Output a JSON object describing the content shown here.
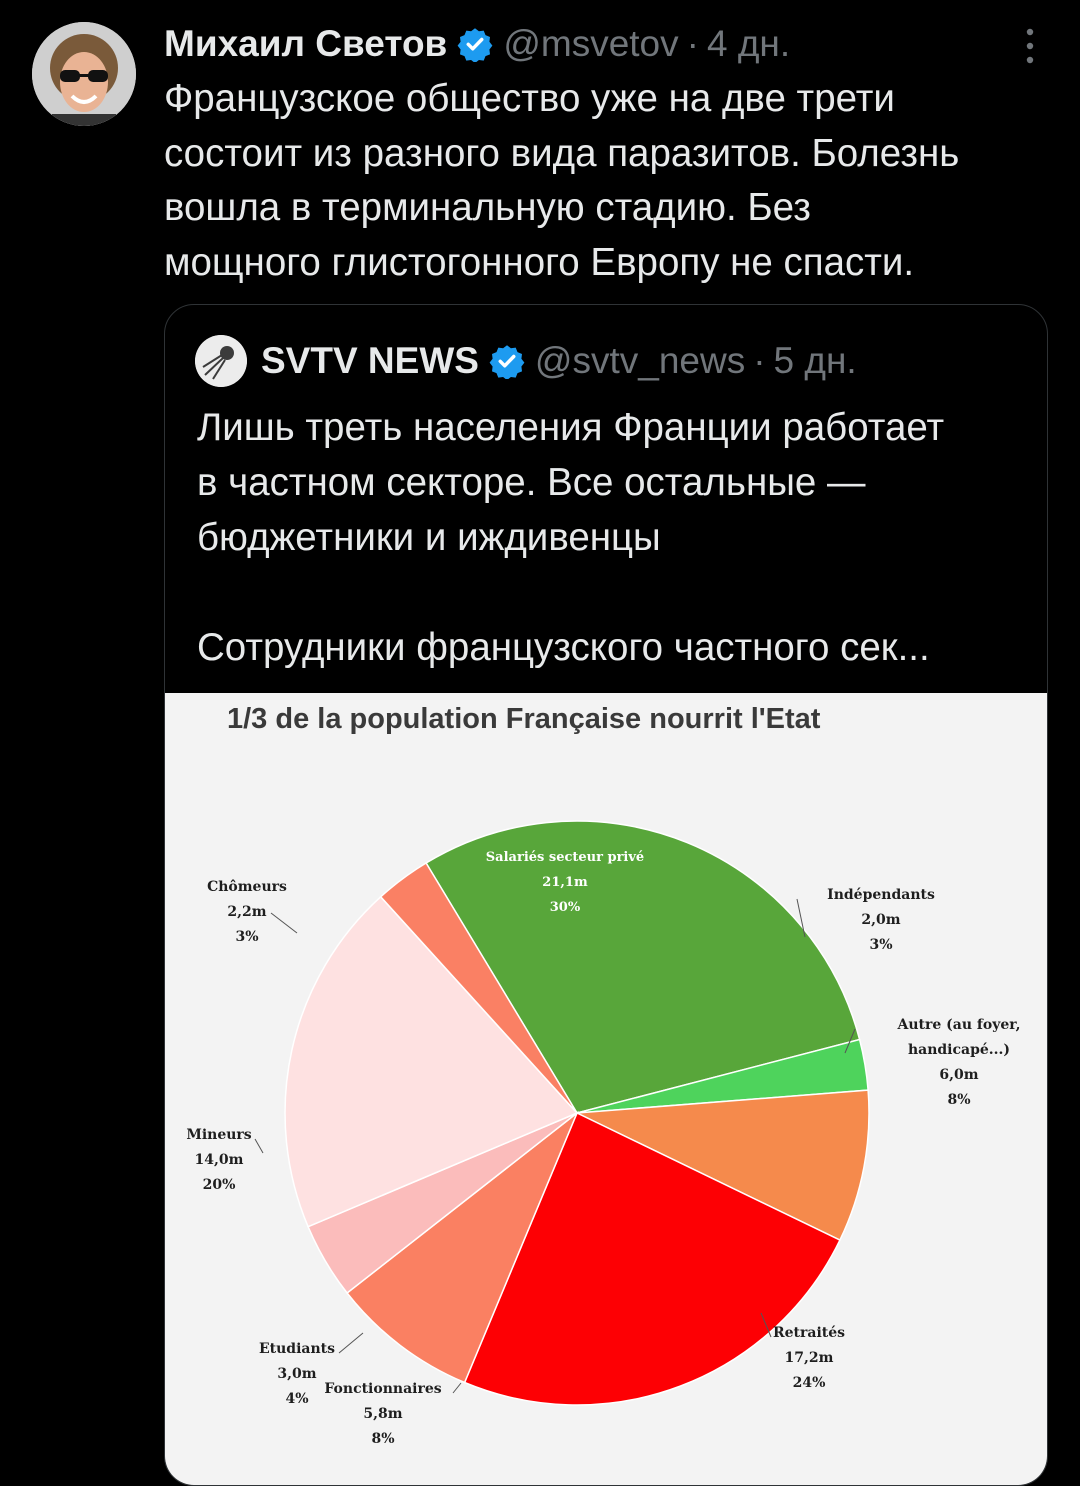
{
  "tweet": {
    "author_name": "Михаил Светов",
    "handle": "@msvetov",
    "separator": "·",
    "time": "4 дн.",
    "text_lines": [
      "Французское общество уже на две трети",
      "состоит из разного вида паразитов. Болезнь",
      "вошла в терминальную стадию. Без",
      "мощного глистогонного Европу не спасти."
    ],
    "icons": {
      "verified": "verified-badge-icon",
      "more": "more-options-icon",
      "avatar": "avatar-photo"
    },
    "colors": {
      "verified": "#1d9bf0",
      "muted": "#71767b",
      "text": "#e7e9ea",
      "border": "#2f3336"
    }
  },
  "quote": {
    "author_name": "SVTV NEWS",
    "handle": "@svtv_news",
    "separator": "·",
    "time": "5 дн.",
    "text_lines": [
      "Лишь треть населения Франции работает",
      "в частном секторе. Все остальные —",
      "бюджетники и иждивенцы"
    ],
    "text_more": "Сотрудники французского частного сек..."
  },
  "chart_data": {
    "type": "pie",
    "title": "1/3 de la population Française nourrit l'Etat",
    "slices": [
      {
        "label": "Salariés secteur privé",
        "value_text": "21,1m",
        "value": 21.1,
        "pct": "30%",
        "color": "#58a63a"
      },
      {
        "label": "Indépendants",
        "value_text": "2,0m",
        "value": 2.0,
        "pct": "3%",
        "color": "#4ed35c"
      },
      {
        "label": "Autre (au foyer, handicapé...)",
        "label_lines": [
          "Autre (au foyer,",
          "handicapé...)"
        ],
        "value_text": "6,0m",
        "value": 6.0,
        "pct": "8%",
        "color": "#f58a4c"
      },
      {
        "label": "Retraités",
        "value_text": "17,2m",
        "value": 17.2,
        "pct": "24%",
        "color": "#fd0004"
      },
      {
        "label": "Fonctionnaires",
        "value_text": "5,8m",
        "value": 5.8,
        "pct": "8%",
        "color": "#fa8062"
      },
      {
        "label": "Etudiants",
        "value_text": "3,0m",
        "value": 3.0,
        "pct": "4%",
        "color": "#fbbcbb"
      },
      {
        "label": "Mineurs",
        "value_text": "14,0m",
        "value": 14.0,
        "pct": "20%",
        "color": "#fee1e1"
      },
      {
        "label": "Chômeurs",
        "value_text": "2,2m",
        "value": 2.2,
        "pct": "3%",
        "color": "#fa8064"
      }
    ]
  }
}
